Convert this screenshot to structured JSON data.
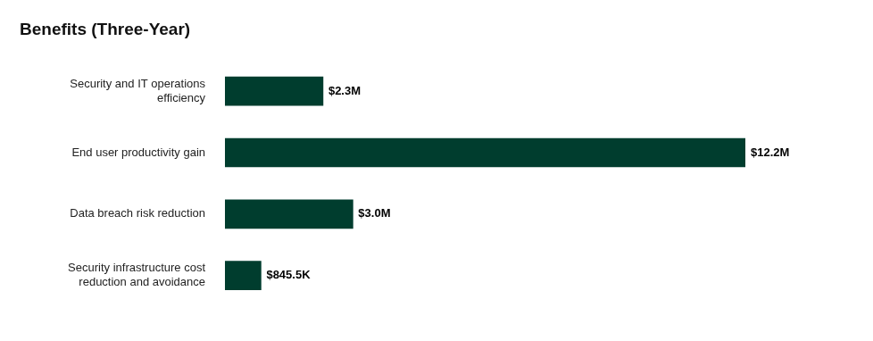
{
  "chart_data": {
    "type": "bar",
    "orientation": "horizontal",
    "title": "Benefits (Three-Year)",
    "categories": [
      "Security and IT operations efficiency",
      "End user productivity gain",
      "Data breach risk reduction",
      "Security infrastructure cost reduction and avoidance"
    ],
    "values": [
      2300000,
      12200000,
      3000000,
      845500
    ],
    "value_labels": [
      "$2.3M",
      "$12.2M",
      "$3.0M",
      "$845.5K"
    ],
    "color": "#003d2e",
    "xlim": [
      0,
      12200000
    ],
    "grid": false,
    "data_labels": true,
    "tick_labels": "y"
  }
}
